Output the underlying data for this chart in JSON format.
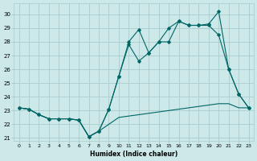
{
  "xlabel": "Humidex (Indice chaleur)",
  "background_color": "#cce8e8",
  "grid_color": "#aacccc",
  "line_color": "#006666",
  "xlim": [
    -0.5,
    23.5
  ],
  "ylim": [
    20.8,
    30.8
  ],
  "xticks": [
    0,
    1,
    2,
    3,
    4,
    5,
    6,
    7,
    8,
    9,
    10,
    11,
    12,
    13,
    14,
    15,
    16,
    17,
    18,
    19,
    20,
    21,
    22,
    23
  ],
  "yticks": [
    21,
    22,
    23,
    24,
    25,
    26,
    27,
    28,
    29,
    30
  ],
  "series_flat_x": [
    0,
    1,
    2,
    3,
    4,
    5,
    6,
    7,
    8,
    9,
    10,
    11,
    12,
    13,
    14,
    15,
    16,
    17,
    18,
    19,
    20,
    21,
    22,
    23
  ],
  "series_flat_y": [
    23.2,
    23.1,
    22.7,
    22.4,
    22.4,
    22.4,
    22.3,
    21.1,
    21.5,
    22.0,
    22.5,
    22.6,
    22.7,
    22.8,
    22.9,
    23.0,
    23.1,
    23.2,
    23.3,
    23.4,
    23.5,
    23.5,
    23.2,
    23.2
  ],
  "series_mid_x": [
    0,
    1,
    2,
    3,
    4,
    5,
    6,
    7,
    8,
    9,
    10,
    11,
    12,
    13,
    14,
    15,
    16,
    17,
    18,
    19,
    20,
    21,
    22,
    23
  ],
  "series_mid_y": [
    23.2,
    23.1,
    22.7,
    22.4,
    22.4,
    22.4,
    22.3,
    21.1,
    21.5,
    23.1,
    25.5,
    27.8,
    26.6,
    27.2,
    28.0,
    28.0,
    29.5,
    29.2,
    29.2,
    29.2,
    28.5,
    26.0,
    24.2,
    23.2
  ],
  "series_top_x": [
    0,
    1,
    2,
    3,
    4,
    5,
    6,
    7,
    8,
    9,
    10,
    11,
    12,
    13,
    14,
    15,
    16,
    17,
    18,
    19,
    20,
    21,
    22,
    23
  ],
  "series_top_y": [
    23.2,
    23.1,
    22.7,
    22.4,
    22.4,
    22.4,
    22.3,
    21.1,
    21.5,
    23.1,
    25.5,
    28.0,
    28.9,
    27.2,
    28.0,
    29.0,
    29.5,
    29.2,
    29.2,
    29.3,
    30.2,
    26.0,
    24.2,
    23.2
  ],
  "figwidth": 3.2,
  "figheight": 2.0,
  "dpi": 100
}
